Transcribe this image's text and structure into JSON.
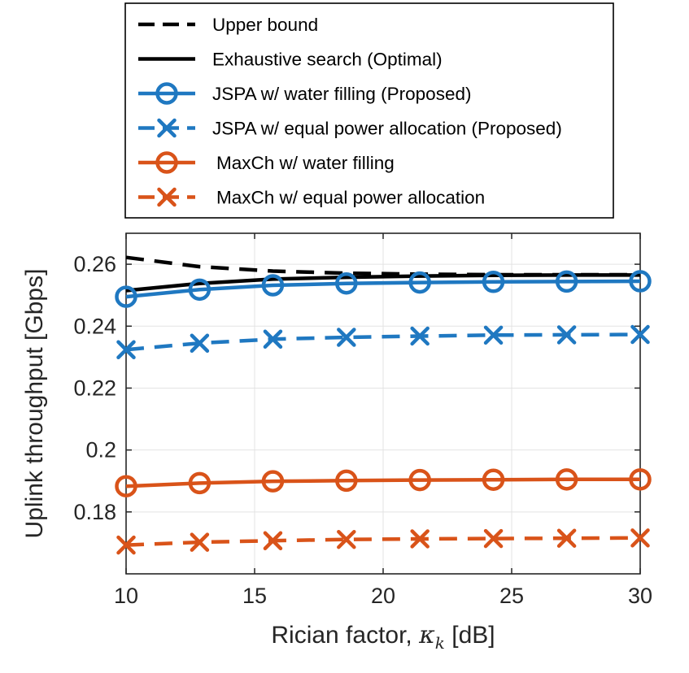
{
  "chart_data": {
    "type": "line",
    "title": "",
    "xlabel_prefix": "Rician factor, ",
    "xlabel_symbol": "κ",
    "xlabel_subscript": "k",
    "xlabel_suffix": " [dB]",
    "ylabel": "Uplink throughput [Gbps]",
    "xlim": [
      10,
      30
    ],
    "ylim": [
      0.16,
      0.27
    ],
    "xticks": [
      10,
      15,
      20,
      25,
      30
    ],
    "yticks": [
      0.18,
      0.2,
      0.22,
      0.24,
      0.26
    ],
    "xtick_labels": [
      "10",
      "15",
      "20",
      "25",
      "30"
    ],
    "ytick_labels": [
      "0.18",
      "0.2",
      "0.22",
      "0.24",
      "0.26"
    ],
    "grid": true,
    "legend_position": "above the plot, centered",
    "series": [
      {
        "name": "Upper bound",
        "color": "#000000",
        "style": "dashed",
        "marker": "none",
        "x": [
          10,
          12.86,
          15.71,
          18.57,
          21.43,
          24.29,
          27.14,
          30
        ],
        "y": [
          0.2622,
          0.2592,
          0.2578,
          0.2571,
          0.2568,
          0.2566,
          0.2566,
          0.2566
        ]
      },
      {
        "name": "Exhaustive search (Optimal)",
        "color": "#000000",
        "style": "solid",
        "marker": "none",
        "x": [
          10,
          12.86,
          15.71,
          18.57,
          21.43,
          24.29,
          27.14,
          30
        ],
        "y": [
          0.2515,
          0.2538,
          0.2552,
          0.2558,
          0.2562,
          0.2564,
          0.2565,
          0.2565
        ]
      },
      {
        "name": "JSPA w/ water filling (Proposed)",
        "color": "#1f78c1",
        "style": "solid",
        "marker": "circle",
        "x": [
          10,
          12.86,
          15.71,
          18.57,
          21.43,
          24.29,
          27.14,
          30
        ],
        "y": [
          0.2495,
          0.2518,
          0.2532,
          0.2538,
          0.2541,
          0.2543,
          0.2544,
          0.2545
        ]
      },
      {
        "name": "JSPA w/ equal power allocation (Proposed)",
        "color": "#1f78c1",
        "style": "dashed",
        "marker": "x",
        "x": [
          10,
          12.86,
          15.71,
          18.57,
          21.43,
          24.29,
          27.14,
          30
        ],
        "y": [
          0.2324,
          0.2345,
          0.2358,
          0.2364,
          0.2368,
          0.2371,
          0.2372,
          0.2373
        ]
      },
      {
        "name": "MaxCh w/ water filling",
        "color": "#d95319",
        "style": "solid",
        "marker": "circle",
        "x": [
          10,
          12.86,
          15.71,
          18.57,
          21.43,
          24.29,
          27.14,
          30
        ],
        "y": [
          0.1883,
          0.1893,
          0.1899,
          0.1901,
          0.1903,
          0.1904,
          0.1905,
          0.1905
        ]
      },
      {
        "name": "MaxCh w/ equal power allocation",
        "color": "#d95319",
        "style": "dashed",
        "marker": "x",
        "x": [
          10,
          12.86,
          15.71,
          18.57,
          21.43,
          24.29,
          27.14,
          30
        ],
        "y": [
          0.1693,
          0.1702,
          0.1707,
          0.1711,
          0.1713,
          0.1714,
          0.1715,
          0.1716
        ]
      }
    ]
  }
}
